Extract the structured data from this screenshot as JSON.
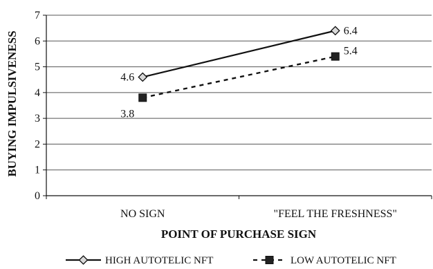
{
  "chart_data": {
    "type": "line",
    "categories": [
      "NO SIGN",
      "\"FEEL THE FRESHNESS\""
    ],
    "xlabel": "POINT OF PURCHASE SIGN",
    "ylabel": "BUYING IMPULSIVENESS",
    "ylim": [
      0,
      7
    ],
    "yticks": [
      0,
      1,
      2,
      3,
      4,
      5,
      6,
      7
    ],
    "grid": true,
    "legend_position": "bottom",
    "series": [
      {
        "name": "HIGH AUTOTELIC NFT",
        "values": [
          4.6,
          6.4
        ],
        "labels": [
          "4.6",
          "6.4"
        ],
        "marker": "diamond",
        "line_style": "solid",
        "color": "#111111"
      },
      {
        "name": "LOW AUTOTELIC NFT",
        "values": [
          3.8,
          5.4
        ],
        "labels": [
          "3.8",
          "5.4"
        ],
        "marker": "square",
        "line_style": "dashed",
        "color": "#111111"
      }
    ]
  }
}
